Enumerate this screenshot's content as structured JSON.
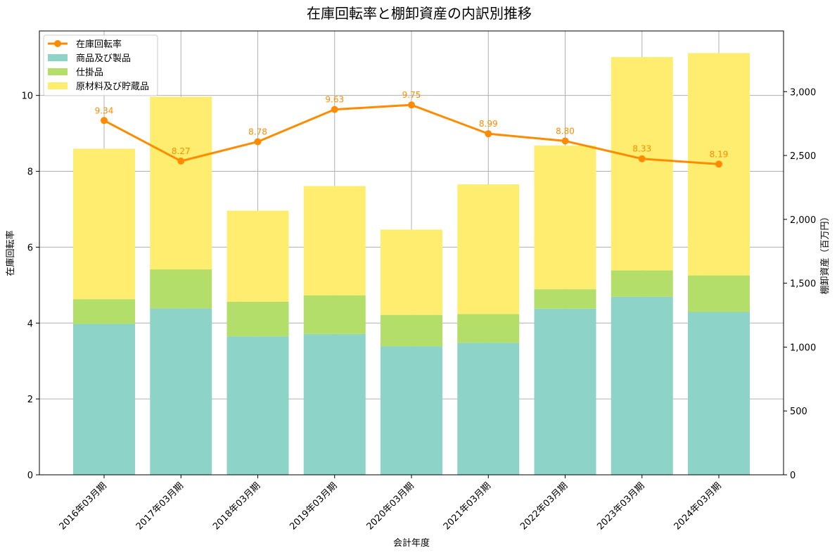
{
  "chart_data": {
    "type": "bar",
    "title": "在庫回転率と棚卸資産の内訳別推移",
    "xlabel": "会計年度",
    "ylabel_left": "在庫回転率",
    "ylabel_right": "棚卸資産（百万円）",
    "categories": [
      "2016年03月期",
      "2017年03月期",
      "2018年03月期",
      "2019年03月期",
      "2020年03月期",
      "2021年03月期",
      "2022年03月期",
      "2023年03月期",
      "2024年03月期"
    ],
    "bar_series": [
      {
        "name": "商品及び製品",
        "color": "#8dd3c7",
        "values": [
          1181,
          1303,
          1084,
          1102,
          1007,
          1034,
          1301,
          1395,
          1275
        ],
        "labels": [
          "1,181",
          "1,303",
          "1,084",
          "1,102",
          "1,007",
          "1,034",
          "1,301",
          "1,395",
          "1,275"
        ]
      },
      {
        "name": "仕掛品",
        "color": "#b3de69",
        "values": [
          194,
          305,
          271,
          303,
          245,
          224,
          152,
          206,
          286
        ],
        "labels": [
          "194",
          "305",
          "271",
          "303",
          "245",
          "224",
          "152",
          "206",
          "286"
        ]
      },
      {
        "name": "原材料及び貯蔵品",
        "color": "#ffed6f",
        "values": [
          1178,
          1352,
          713,
          856,
          668,
          1016,
          1125,
          1670,
          1741
        ],
        "labels": [
          "1,178",
          "1,352",
          "713",
          "856",
          "668",
          "1,016",
          "1,125",
          "1,670",
          "1,741"
        ]
      }
    ],
    "line_series": {
      "name": "在庫回転率",
      "color": "#ff8c00",
      "values": [
        9.34,
        8.27,
        8.78,
        9.63,
        9.75,
        8.99,
        8.8,
        8.33,
        8.19
      ],
      "labels": [
        "9.34",
        "8.27",
        "8.78",
        "9.63",
        "9.75",
        "8.99",
        "8.80",
        "8.33",
        "8.19"
      ]
    },
    "y_left": {
      "range": [
        0,
        11.7
      ],
      "ticks": [
        0,
        2,
        4,
        6,
        8,
        10
      ],
      "tick_labels": [
        "0",
        "2",
        "4",
        "6",
        "8",
        "10"
      ]
    },
    "y_right": {
      "range": [
        0,
        3475
      ],
      "ticks": [
        0,
        500,
        1000,
        1500,
        2000,
        2500,
        3000
      ],
      "tick_labels": [
        "0",
        "500",
        "1,000",
        "1,500",
        "2,000",
        "2,500",
        "3,000"
      ]
    },
    "grid": true,
    "legend_placement": "top-left"
  }
}
